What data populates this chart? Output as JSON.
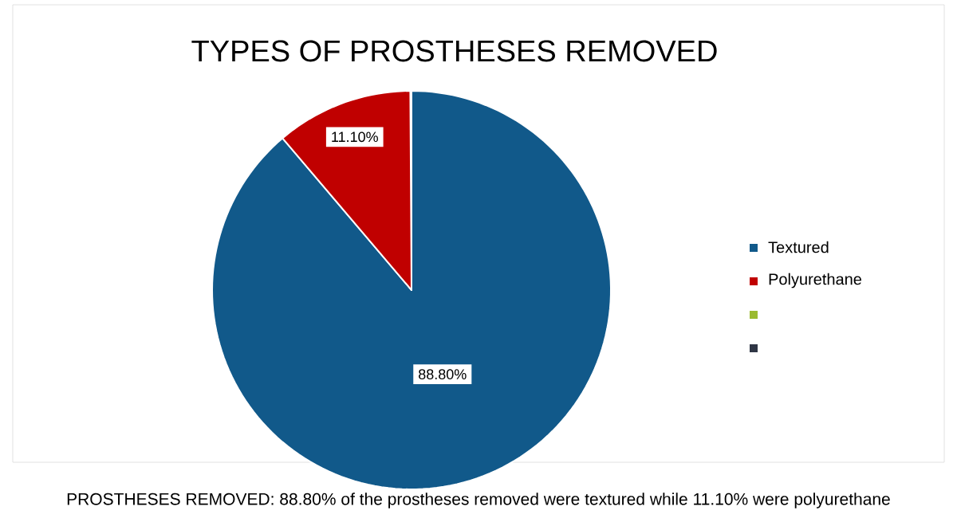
{
  "chart_data": {
    "type": "pie",
    "title": "TYPES OF PROSTHESES REMOVED",
    "categories": [
      "Textured",
      "Polyurethane",
      null,
      null
    ],
    "values": [
      88.8,
      11.1,
      0,
      0
    ],
    "colors": [
      "#11598a",
      "#c00000",
      "#9bbb30",
      "#2f3645"
    ],
    "value_labels": [
      "88.80%",
      "11.10%",
      null,
      null
    ],
    "legend": "right",
    "annotations": [
      "PROSTHESES REMOVED: 88.80% of the prostheses removed were textured while 11.10% were polyurethane"
    ]
  }
}
